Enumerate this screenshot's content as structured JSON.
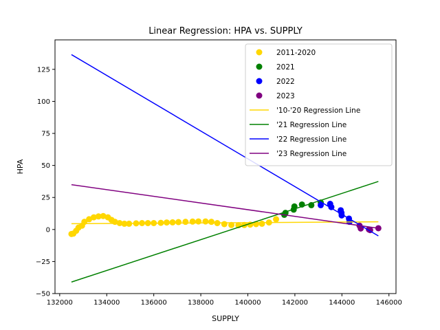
{
  "chart_data": {
    "type": "scatter",
    "title": "Linear Regression: HPA vs. SUPPLY",
    "xlabel": "SUPPLY",
    "ylabel": "HPA",
    "xlim": [
      131800,
      146300
    ],
    "ylim": [
      -50,
      148
    ],
    "xticks": [
      132000,
      134000,
      136000,
      138000,
      140000,
      142000,
      144000,
      146000
    ],
    "yticks": [
      -50,
      -25,
      0,
      25,
      50,
      75,
      100,
      125
    ],
    "grid": false,
    "legend_position": "top-right",
    "scatter_series": [
      {
        "name": "2011-2020",
        "color": "#FFD700",
        "points": [
          [
            132500,
            -3.5
          ],
          [
            132580,
            -3.2
          ],
          [
            132700,
            -1
          ],
          [
            132800,
            1.5
          ],
          [
            132950,
            3
          ],
          [
            133050,
            6
          ],
          [
            133250,
            8
          ],
          [
            133450,
            9.5
          ],
          [
            133650,
            10.2
          ],
          [
            133850,
            10.5
          ],
          [
            134050,
            9.5
          ],
          [
            134200,
            7.5
          ],
          [
            134350,
            6
          ],
          [
            134550,
            5
          ],
          [
            134750,
            4.5
          ],
          [
            134950,
            4.5
          ],
          [
            135250,
            4.8
          ],
          [
            135500,
            5
          ],
          [
            135750,
            5
          ],
          [
            136000,
            5
          ],
          [
            136300,
            5.2
          ],
          [
            136550,
            5.5
          ],
          [
            136800,
            5.6
          ],
          [
            137050,
            5.8
          ],
          [
            137350,
            6
          ],
          [
            137650,
            6.2
          ],
          [
            137900,
            6.3
          ],
          [
            138200,
            6.3
          ],
          [
            138450,
            6
          ],
          [
            138700,
            5
          ],
          [
            139000,
            4.2
          ],
          [
            139300,
            3.5
          ],
          [
            139600,
            3.3
          ],
          [
            139850,
            3.5
          ],
          [
            140100,
            3.8
          ],
          [
            140350,
            4.2
          ],
          [
            140600,
            4.5
          ],
          [
            140900,
            5.5
          ],
          [
            141200,
            8
          ]
        ]
      },
      {
        "name": "2021",
        "color": "#008000",
        "points": [
          [
            141550,
            11.5
          ],
          [
            141600,
            13
          ],
          [
            141950,
            15.5
          ],
          [
            141980,
            18
          ],
          [
            142300,
            19.5
          ],
          [
            142700,
            19
          ],
          [
            143100,
            21
          ]
        ]
      },
      {
        "name": "2022",
        "color": "#0000FF",
        "points": [
          [
            143100,
            19
          ],
          [
            143500,
            20
          ],
          [
            143550,
            17.5
          ],
          [
            143950,
            15
          ],
          [
            143980,
            13
          ],
          [
            143990,
            11
          ],
          [
            144300,
            8.5
          ],
          [
            144320,
            6
          ]
        ]
      },
      {
        "name": "2023",
        "color": "#800080",
        "points": [
          [
            144750,
            3
          ],
          [
            144800,
            0.8
          ],
          [
            145150,
            0
          ],
          [
            145200,
            -0.5
          ],
          [
            145550,
            1
          ]
        ]
      }
    ],
    "regression_lines": [
      {
        "name": "'10-'20 Regression Line",
        "color": "#FFD700",
        "x": [
          132500,
          145550
        ],
        "y": [
          4.5,
          6.0
        ]
      },
      {
        "name": "'21 Regression Line",
        "color": "#008000",
        "x": [
          132500,
          145550
        ],
        "y": [
          -41,
          37.5
        ]
      },
      {
        "name": "'22 Regression Line",
        "color": "#0000FF",
        "x": [
          132500,
          145550
        ],
        "y": [
          136.5,
          -5
        ]
      },
      {
        "name": "'23 Regression Line",
        "color": "#800080",
        "x": [
          132500,
          145550
        ],
        "y": [
          35,
          1
        ]
      }
    ]
  }
}
